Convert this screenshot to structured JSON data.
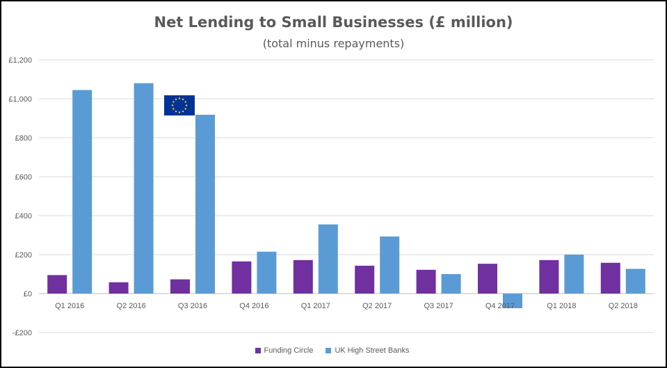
{
  "chart_data": {
    "type": "bar",
    "title": "Net Lending to Small Businesses (£ million)",
    "subtitle": "(total minus repayments)",
    "categories": [
      "Q1 2016",
      "Q2 2016",
      "Q3 2016",
      "Q4 2016",
      "Q1 2017",
      "Q2 2017",
      "Q3 2017",
      "Q4 2017",
      "Q1 2018",
      "Q2 2018"
    ],
    "series": [
      {
        "name": "Funding Circle",
        "color": "#7030a0",
        "values": [
          95,
          58,
          73,
          165,
          172,
          143,
          122,
          153,
          172,
          158
        ]
      },
      {
        "name": "UK High Street Banks",
        "color": "#5b9bd5",
        "values": [
          1045,
          1080,
          918,
          215,
          355,
          293,
          100,
          -75,
          200,
          127
        ]
      }
    ],
    "ylim": [
      -200,
      1200
    ],
    "yticks": [
      -200,
      0,
      200,
      400,
      600,
      800,
      1000,
      1200
    ],
    "ytick_labels": [
      "-£200",
      "£0",
      "£200",
      "£400",
      "£600",
      "£800",
      "£1,000",
      "£1,200"
    ],
    "grid": true,
    "legend_position": "bottom",
    "annotation": {
      "type": "eu-flag-icon",
      "category": "Q3 2016",
      "flag_color": "#003399",
      "star_color": "#ffcc00"
    }
  }
}
